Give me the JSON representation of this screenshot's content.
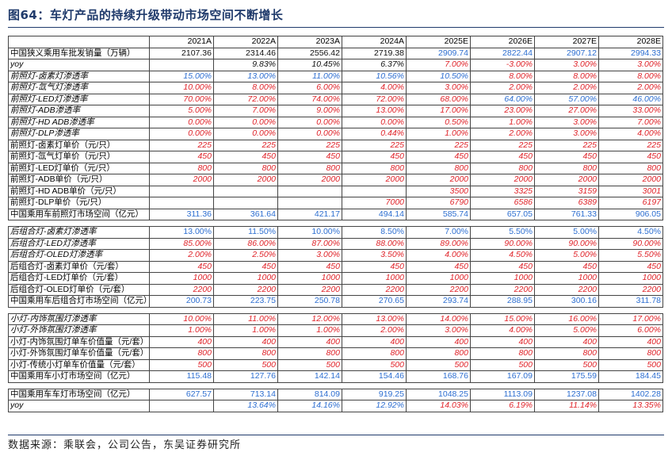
{
  "title": "图64：车灯产品的持续升级带动市场空间不断增长",
  "source": "数据来源：乘联会，公司公告，东吴证券研究所",
  "columns": [
    "2021A",
    "2022A",
    "2023A",
    "2024A",
    "2025E",
    "2026E",
    "2027E",
    "2028E"
  ],
  "rows": [
    {
      "label": "中国狭义乘用车批发销量（万辆）",
      "italic": false,
      "values": [
        "2107.36",
        "2314.46",
        "2556.42",
        "2719.38",
        "2909.74",
        "2822.44",
        "2907.12",
        "2994.33"
      ],
      "styles": [
        "black",
        "black",
        "black",
        "black",
        "blue",
        "blue",
        "blue",
        "blue"
      ]
    },
    {
      "label": "yoy",
      "italic": true,
      "values": [
        "",
        "9.83%",
        "10.45%",
        "6.37%",
        "7.00%",
        "-3.00%",
        "3.00%",
        "3.00%"
      ],
      "styles": [
        "blacki",
        "blacki",
        "blacki",
        "blacki",
        "red",
        "red",
        "red",
        "red"
      ]
    },
    {
      "label": "前照灯-卤素灯渗透率",
      "italic": true,
      "values": [
        "15.00%",
        "13.00%",
        "11.00%",
        "10.56%",
        "10.50%",
        "8.00%",
        "8.00%",
        "8.00%"
      ],
      "styles": [
        "bluei",
        "bluei",
        "bluei",
        "bluei",
        "bluei",
        "red",
        "red",
        "red"
      ]
    },
    {
      "label": "前照灯-氙气灯渗透率",
      "italic": true,
      "values": [
        "10.00%",
        "8.00%",
        "6.00%",
        "4.00%",
        "3.00%",
        "2.00%",
        "2.00%",
        "2.00%"
      ],
      "styles": [
        "red",
        "red",
        "red",
        "red",
        "red",
        "red",
        "red",
        "red"
      ]
    },
    {
      "label": "前照灯-LED灯渗透率",
      "italic": true,
      "values": [
        "70.00%",
        "72.00%",
        "74.00%",
        "72.00%",
        "68.00%",
        "64.00%",
        "57.00%",
        "46.00%"
      ],
      "styles": [
        "red",
        "red",
        "red",
        "red",
        "red",
        "bluei",
        "bluei",
        "bluei"
      ]
    },
    {
      "label": "前照灯-ADB渗透率",
      "italic": true,
      "values": [
        "5.00%",
        "7.00%",
        "9.00%",
        "13.00%",
        "17.00%",
        "23.00%",
        "27.00%",
        "33.00%"
      ],
      "styles": [
        "red",
        "red",
        "red",
        "red",
        "red",
        "red",
        "red",
        "red"
      ]
    },
    {
      "label": "前照灯-HD ADB渗透率",
      "italic": true,
      "values": [
        "0.00%",
        "0.00%",
        "0.00%",
        "0.00%",
        "0.50%",
        "1.00%",
        "3.00%",
        "7.00%"
      ],
      "styles": [
        "red",
        "red",
        "red",
        "red",
        "red",
        "red",
        "red",
        "red"
      ]
    },
    {
      "label": "前照灯-DLP渗透率",
      "italic": true,
      "values": [
        "0.00%",
        "0.00%",
        "0.00%",
        "0.44%",
        "1.00%",
        "2.00%",
        "3.00%",
        "4.00%"
      ],
      "styles": [
        "red",
        "red",
        "red",
        "red",
        "red",
        "red",
        "red",
        "red"
      ]
    },
    {
      "label": "前照灯-卤素灯单价（元/只）",
      "italic": false,
      "values": [
        "225",
        "225",
        "225",
        "225",
        "225",
        "225",
        "225",
        "225"
      ],
      "styles": [
        "red",
        "red",
        "red",
        "red",
        "red",
        "red",
        "red",
        "red"
      ]
    },
    {
      "label": "前照灯-氙气灯单价（元/只）",
      "italic": false,
      "values": [
        "450",
        "450",
        "450",
        "450",
        "450",
        "450",
        "450",
        "450"
      ],
      "styles": [
        "red",
        "red",
        "red",
        "red",
        "red",
        "red",
        "red",
        "red"
      ]
    },
    {
      "label": "前照灯-LED灯单价（元/只）",
      "italic": false,
      "values": [
        "800",
        "800",
        "800",
        "800",
        "800",
        "800",
        "800",
        "800"
      ],
      "styles": [
        "red",
        "red",
        "red",
        "red",
        "red",
        "red",
        "red",
        "red"
      ]
    },
    {
      "label": "前照灯-ADB单价（元/只）",
      "italic": false,
      "values": [
        "2000",
        "2000",
        "2000",
        "2000",
        "2000",
        "2000",
        "2000",
        "2000"
      ],
      "styles": [
        "red",
        "red",
        "red",
        "red",
        "red",
        "red",
        "red",
        "red"
      ]
    },
    {
      "label": "前照灯-HD ADB单价（元/只）",
      "italic": false,
      "values": [
        "",
        "",
        "",
        "",
        "3500",
        "3325",
        "3159",
        "3001"
      ],
      "styles": [
        "red",
        "red",
        "red",
        "red",
        "red",
        "red",
        "red",
        "red"
      ]
    },
    {
      "label": "前照灯-DLP单价（元/只）",
      "italic": false,
      "values": [
        "",
        "",
        "",
        "7000",
        "6790",
        "6586",
        "6389",
        "6197"
      ],
      "styles": [
        "red",
        "red",
        "red",
        "red",
        "red",
        "red",
        "red",
        "red"
      ]
    },
    {
      "label": "中国乘用车前照灯市场空间（亿元）",
      "italic": false,
      "values": [
        "311.36",
        "361.64",
        "421.17",
        "494.14",
        "585.74",
        "657.05",
        "761.33",
        "906.05"
      ],
      "styles": [
        "blue",
        "blue",
        "blue",
        "blue",
        "blue",
        "blue",
        "blue",
        "blue"
      ]
    },
    {
      "gap": true
    },
    {
      "label": "后组合灯-卤素灯渗透率",
      "italic": true,
      "values": [
        "13.00%",
        "11.50%",
        "10.00%",
        "8.50%",
        "7.00%",
        "5.50%",
        "5.00%",
        "4.50%"
      ],
      "styles": [
        "blue",
        "blue",
        "blue",
        "blue",
        "blue",
        "blue",
        "blue",
        "blue"
      ]
    },
    {
      "label": "后组合灯-LED灯渗透率",
      "italic": true,
      "values": [
        "85.00%",
        "86.00%",
        "87.00%",
        "88.00%",
        "89.00%",
        "90.00%",
        "90.00%",
        "90.00%"
      ],
      "styles": [
        "red",
        "red",
        "red",
        "red",
        "red",
        "red",
        "red",
        "red"
      ]
    },
    {
      "label": "后组合灯-OLED灯渗透率",
      "italic": true,
      "values": [
        "2.00%",
        "2.50%",
        "3.00%",
        "3.50%",
        "4.00%",
        "4.50%",
        "5.00%",
        "5.50%"
      ],
      "styles": [
        "red",
        "red",
        "red",
        "red",
        "red",
        "red",
        "red",
        "red"
      ]
    },
    {
      "label": "后组合灯-卤素灯单价（元/套）",
      "italic": false,
      "values": [
        "450",
        "450",
        "450",
        "450",
        "450",
        "450",
        "450",
        "450"
      ],
      "styles": [
        "red",
        "red",
        "red",
        "red",
        "red",
        "red",
        "red",
        "red"
      ]
    },
    {
      "label": "后组合灯-LED灯单价（元/套）",
      "italic": false,
      "values": [
        "1000",
        "1000",
        "1000",
        "1000",
        "1000",
        "1000",
        "1000",
        "1000"
      ],
      "styles": [
        "red",
        "red",
        "red",
        "red",
        "red",
        "red",
        "red",
        "red"
      ]
    },
    {
      "label": "后组合灯-OLED灯单价（元/套）",
      "italic": false,
      "values": [
        "2200",
        "2200",
        "2200",
        "2200",
        "2200",
        "2200",
        "2200",
        "2200"
      ],
      "styles": [
        "red",
        "red",
        "red",
        "red",
        "red",
        "red",
        "red",
        "red"
      ]
    },
    {
      "label": "中国乘用车后组合灯市场空间（亿元）",
      "italic": false,
      "values": [
        "200.73",
        "223.75",
        "250.78",
        "270.65",
        "293.74",
        "288.95",
        "300.16",
        "311.78"
      ],
      "styles": [
        "blue",
        "blue",
        "blue",
        "blue",
        "blue",
        "blue",
        "blue",
        "blue"
      ]
    },
    {
      "gap": true
    },
    {
      "label": "小灯-内饰氛围灯渗透率",
      "italic": true,
      "values": [
        "10.00%",
        "11.00%",
        "12.00%",
        "13.00%",
        "14.00%",
        "15.00%",
        "16.00%",
        "17.00%"
      ],
      "styles": [
        "red",
        "red",
        "red",
        "red",
        "red",
        "red",
        "red",
        "red"
      ]
    },
    {
      "label": "小灯-外饰氛围灯渗透率",
      "italic": true,
      "values": [
        "1.00%",
        "1.00%",
        "1.00%",
        "2.00%",
        "3.00%",
        "4.00%",
        "5.00%",
        "6.00%"
      ],
      "styles": [
        "red",
        "red",
        "red",
        "red",
        "red",
        "red",
        "red",
        "red"
      ]
    },
    {
      "label": "小灯-内饰氛围灯单车价值量（元/套）",
      "italic": false,
      "values": [
        "400",
        "400",
        "400",
        "400",
        "400",
        "400",
        "400",
        "400"
      ],
      "styles": [
        "red",
        "red",
        "red",
        "red",
        "red",
        "red",
        "red",
        "red"
      ]
    },
    {
      "label": "小灯-外饰氛围灯单车价值量（元/套）",
      "italic": false,
      "values": [
        "800",
        "800",
        "800",
        "800",
        "800",
        "800",
        "800",
        "800"
      ],
      "styles": [
        "red",
        "red",
        "red",
        "red",
        "red",
        "red",
        "red",
        "red"
      ]
    },
    {
      "label": "小灯-传统小灯单车价值量（元/套）",
      "italic": false,
      "values": [
        "500",
        "500",
        "500",
        "500",
        "500",
        "500",
        "500",
        "500"
      ],
      "styles": [
        "red",
        "red",
        "red",
        "red",
        "red",
        "red",
        "red",
        "red"
      ]
    },
    {
      "label": "中国乘用车小灯市场空间（亿元）",
      "italic": false,
      "values": [
        "115.48",
        "127.76",
        "142.14",
        "154.46",
        "168.76",
        "167.09",
        "175.59",
        "184.45"
      ],
      "styles": [
        "blue",
        "blue",
        "blue",
        "blue",
        "blue",
        "blue",
        "blue",
        "blue"
      ]
    },
    {
      "gap": true
    },
    {
      "label": "中国乘用车车灯市场空间（亿元）",
      "italic": false,
      "values": [
        "627.57",
        "713.14",
        "814.09",
        "919.25",
        "1048.25",
        "1113.09",
        "1237.08",
        "1402.28"
      ],
      "styles": [
        "blue",
        "blue",
        "blue",
        "blue",
        "blue",
        "blue",
        "blue",
        "blue"
      ]
    },
    {
      "label": "yoy",
      "italic": true,
      "values": [
        "",
        "13.64%",
        "14.16%",
        "12.92%",
        "14.03%",
        "6.19%",
        "11.14%",
        "13.35%"
      ],
      "styles": [
        "bluei",
        "bluei",
        "bluei",
        "bluei",
        "red",
        "red",
        "red",
        "red"
      ]
    }
  ]
}
